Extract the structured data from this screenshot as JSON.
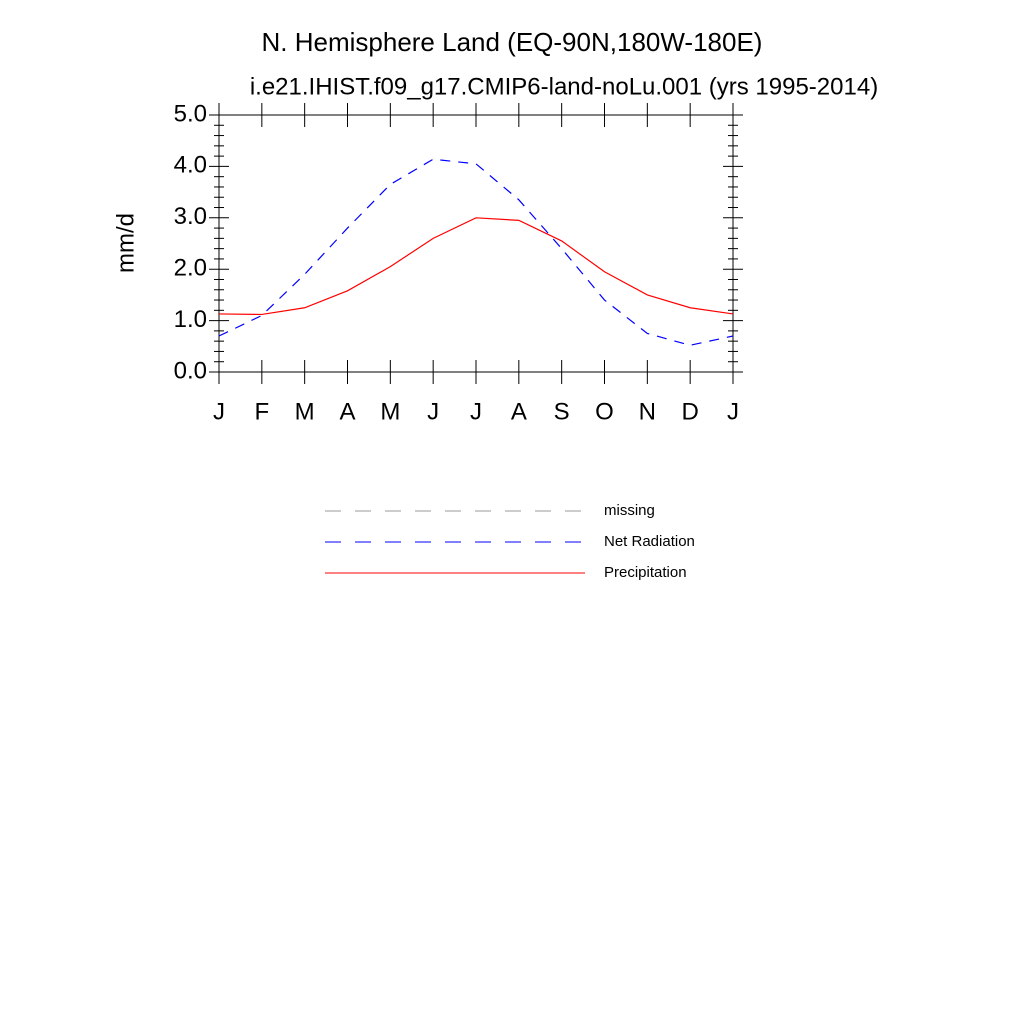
{
  "chart_data": {
    "type": "line",
    "title": "N. Hemisphere Land (EQ-90N,180W-180E)",
    "subtitle": "i.e21.IHIST.f09_g17.CMIP6-land-noLu.001 (yrs 1995-2014)",
    "ylabel": "mm/d",
    "categories": [
      "J",
      "F",
      "M",
      "A",
      "M",
      "J",
      "J",
      "A",
      "S",
      "O",
      "N",
      "D",
      "J"
    ],
    "series": [
      {
        "name": "missing",
        "color": "#999999",
        "dash": true,
        "values": [
          null,
          null,
          null,
          null,
          null,
          null,
          null,
          null,
          null,
          null,
          null,
          null,
          null
        ]
      },
      {
        "name": "Net Radiation",
        "color": "#0000ff",
        "dash": true,
        "values": [
          0.7,
          1.1,
          1.9,
          2.8,
          3.65,
          4.14,
          4.05,
          3.35,
          2.4,
          1.4,
          0.75,
          0.52,
          0.7
        ]
      },
      {
        "name": "Precipitation",
        "color": "#ff0000",
        "dash": false,
        "values": [
          1.13,
          1.12,
          1.25,
          1.58,
          2.05,
          2.6,
          3.0,
          2.95,
          2.55,
          1.95,
          1.5,
          1.25,
          1.13
        ]
      }
    ],
    "ylim": [
      0,
      5
    ],
    "yticks": [
      {
        "value": 0,
        "label": "0.0"
      },
      {
        "value": 1,
        "label": "1.0"
      },
      {
        "value": 2,
        "label": "2.0"
      },
      {
        "value": 3,
        "label": "3.0"
      },
      {
        "value": 4,
        "label": "4.0"
      },
      {
        "value": 5,
        "label": "5.0"
      }
    ],
    "yminorticks": [
      0.2,
      0.4,
      0.6,
      0.8,
      1.2,
      1.4,
      1.6,
      1.8,
      2.2,
      2.4,
      2.6,
      2.8,
      3.2,
      3.4,
      3.6,
      3.8,
      4.2,
      4.4,
      4.6,
      4.8
    ],
    "grid": false
  }
}
